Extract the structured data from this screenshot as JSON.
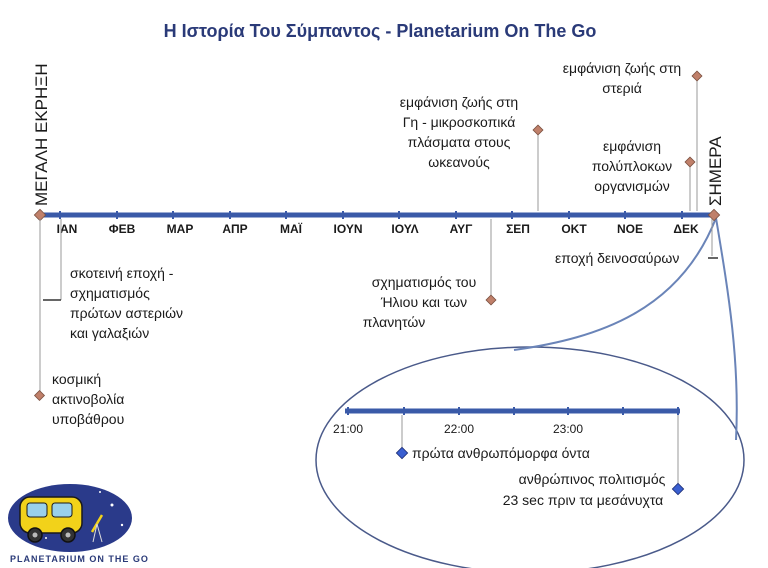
{
  "title": "Η Ιστορία Του Σύμπαντος - Planetarium On The Go",
  "start_label": "ΜΕΓΑΛΗ ΕΚΡΗΞΗ",
  "end_label": "ΣΗΜΕΡΑ",
  "months": [
    "ΙΑΝ",
    "ΦΕΒ",
    "ΜΑΡ",
    "ΑΠΡ",
    "ΜΑΪ",
    "ΙΟΥΝ",
    "ΙΟΥΛ",
    "ΑΥΓ",
    "ΣΕΠ",
    "ΟΚΤ",
    "ΝΟΕ",
    "ΔΕΚ"
  ],
  "events": {
    "cmb": [
      "κοσμική",
      "ακτινοβολία",
      "υποβάθρου"
    ],
    "dark_age": [
      "σκοτεινή εποχή -",
      "σχηματισμός",
      "πρώτων αστεριών",
      "και γαλαξιών"
    ],
    "sun": [
      "σχηματισμός του",
      "Ήλιου και των",
      "πλανητών"
    ],
    "life_earth": [
      "εμφάνιση ζωής στη",
      "Γη - μικροσκοπικά",
      "πλάσματα στους",
      "ωκεανούς"
    ],
    "complex": [
      "εμφάνιση",
      "πολύπλοκων",
      "οργανισμών"
    ],
    "life_land": [
      "εμφάνιση ζωής στη",
      "στεριά"
    ],
    "dinosaurs": [
      "εποχή δεινοσαύρων"
    ]
  },
  "zoom": {
    "ticks": [
      "21:00",
      "22:00",
      "23:00"
    ],
    "hominids": "πρώτα ανθρωπόμορφα όντα",
    "civilization": [
      "ανθρώπινος πολιτισμός",
      "23 sec πριν τα μεσάνυχτα"
    ]
  },
  "logo": {
    "text": "PLANETARIUM ON THE GO"
  },
  "colors": {
    "timeline": "#3a5aa8",
    "title": "#2a3a78",
    "marker": "#c0806a",
    "zoom_marker": "#3a5fd0"
  }
}
